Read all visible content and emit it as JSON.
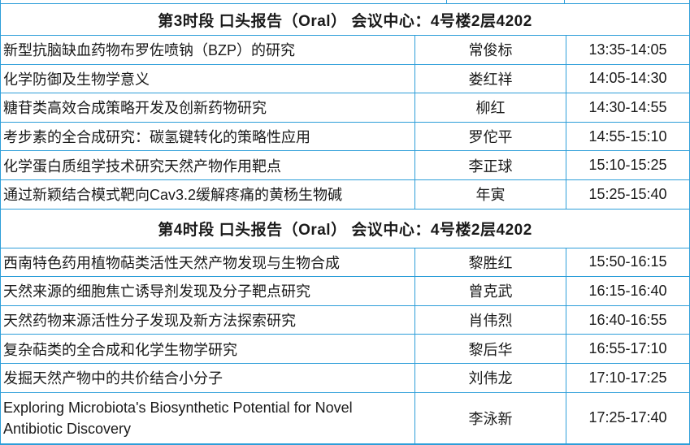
{
  "colors": {
    "grid_border": "#2D9ED9",
    "text": "#1A1A1A",
    "background": "#FFFFFF"
  },
  "table": {
    "sessions": [
      {
        "header": "第3时段 口头报告（Oral） 会议中心：4号楼2层4202",
        "rows": [
          {
            "title": "新型抗脑缺血药物布罗佐喷钠（BZP）的研究",
            "speaker": "常俊标",
            "time": "13:35-14:05"
          },
          {
            "title": "化学防御及生物学意义",
            "speaker": "娄红祥",
            "time": "14:05-14:30"
          },
          {
            "title": "糖苷类高效合成策略开发及创新药物研究",
            "speaker": "柳红",
            "time": "14:30-14:55"
          },
          {
            "title": "考步素的全合成研究：碳氢键转化的策略性应用",
            "speaker": "罗佗平",
            "time": "14:55-15:10"
          },
          {
            "title": "化学蛋白质组学技术研究天然产物作用靶点",
            "speaker": "李正球",
            "time": "15:10-15:25"
          },
          {
            "title": "通过新颖结合模式靶向Cav3.2缓解疼痛的黄杨生物碱",
            "speaker": "年寅",
            "time": "15:25-15:40"
          }
        ]
      },
      {
        "header": "第4时段 口头报告（Oral） 会议中心：4号楼2层4202",
        "rows": [
          {
            "title": "西南特色药用植物萜类活性天然产物发现与生物合成",
            "speaker": "黎胜红",
            "time": "15:50-16:15"
          },
          {
            "title": "天然来源的细胞焦亡诱导剂发现及分子靶点研究",
            "speaker": "曾克武",
            "time": "16:15-16:40"
          },
          {
            "title": "天然药物来源活性分子发现及新方法探索研究",
            "speaker": "肖伟烈",
            "time": "16:40-16:55"
          },
          {
            "title": "复杂萜类的全合成和化学生物学研究",
            "speaker": "黎后华",
            "time": "16:55-17:10"
          },
          {
            "title": "发掘天然产物中的共价结合小分子",
            "speaker": "刘伟龙",
            "time": "17:10-17:25"
          },
          {
            "title": "Exploring Microbiota's Biosynthetic Potential for Novel Antibiotic Discovery",
            "speaker": "李泳新",
            "time": "17:25-17:40"
          }
        ]
      }
    ]
  }
}
